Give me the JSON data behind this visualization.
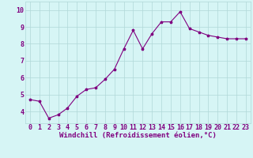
{
  "x": [
    0,
    1,
    2,
    3,
    4,
    5,
    6,
    7,
    8,
    9,
    10,
    11,
    12,
    13,
    14,
    15,
    16,
    17,
    18,
    19,
    20,
    21,
    22,
    23
  ],
  "y": [
    4.7,
    4.6,
    3.6,
    3.8,
    4.2,
    4.9,
    5.3,
    5.4,
    5.9,
    6.5,
    7.7,
    8.8,
    7.7,
    8.6,
    9.3,
    9.3,
    9.9,
    8.9,
    8.7,
    8.5,
    8.4,
    8.3,
    8.3,
    8.3
  ],
  "line_color": "#800080",
  "marker": "*",
  "marker_size": 2.5,
  "bg_color": "#d6f5f5",
  "grid_color": "#b0d8d8",
  "xlabel": "Windchill (Refroidissement éolien,°C)",
  "xlabel_color": "#800080",
  "xlabel_fontsize": 6.5,
  "ylabel_ticks": [
    4,
    5,
    6,
    7,
    8,
    9,
    10
  ],
  "xlim": [
    -0.5,
    23.5
  ],
  "ylim": [
    3.3,
    10.5
  ],
  "tick_color": "#800080",
  "tick_fontsize": 6.0,
  "xtick_labels": [
    "0",
    "1",
    "2",
    "3",
    "4",
    "5",
    "6",
    "7",
    "8",
    "9",
    "10",
    "11",
    "12",
    "13",
    "14",
    "15",
    "16",
    "17",
    "18",
    "19",
    "20",
    "21",
    "22",
    "23"
  ],
  "linewidth": 0.8
}
